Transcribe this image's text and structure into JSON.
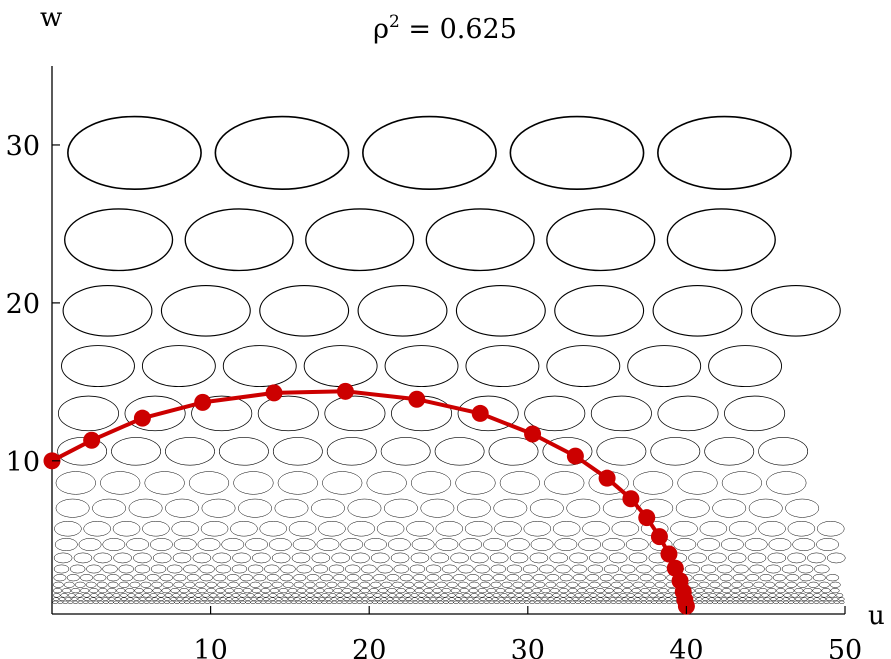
{
  "chart_data": {
    "type": "scatter",
    "title_base": "ρ",
    "title_sup": "2",
    "title_rest": " = 0.625",
    "xlabel": "u",
    "ylabel": "w",
    "xlim": [
      0,
      50
    ],
    "ylim": [
      0.3,
      35
    ],
    "x_ticks": [
      10,
      20,
      30,
      40,
      50
    ],
    "y_ticks": [
      10,
      20,
      30
    ],
    "grid": false,
    "colors": {
      "curve": "#cc0000",
      "ellipse_stroke": "#000000"
    },
    "ellipse_rows": [
      {
        "w": 29.5,
        "rx": 4.2,
        "ry": 2.3,
        "x_start": 5.2,
        "dx": 9.3
      },
      {
        "w": 24.0,
        "rx": 3.4,
        "ry": 1.95,
        "x_start": 4.2,
        "dx": 7.6
      },
      {
        "w": 19.5,
        "rx": 2.8,
        "ry": 1.6,
        "x_start": 3.5,
        "dx": 6.2
      },
      {
        "w": 16.0,
        "rx": 2.3,
        "ry": 1.3,
        "x_start": 2.9,
        "dx": 5.1
      },
      {
        "w": 13.0,
        "rx": 1.9,
        "ry": 1.1,
        "x_start": 2.3,
        "dx": 4.2
      },
      {
        "w": 10.6,
        "rx": 1.55,
        "ry": 0.88,
        "x_start": 1.9,
        "dx": 3.4
      },
      {
        "w": 8.6,
        "rx": 1.25,
        "ry": 0.72,
        "x_start": 1.5,
        "dx": 2.8
      },
      {
        "w": 7.0,
        "rx": 1.05,
        "ry": 0.58,
        "x_start": 1.3,
        "dx": 2.3
      },
      {
        "w": 5.7,
        "rx": 0.85,
        "ry": 0.47,
        "x_start": 1.0,
        "dx": 1.85
      },
      {
        "w": 4.7,
        "rx": 0.7,
        "ry": 0.39,
        "x_start": 0.9,
        "dx": 1.5
      },
      {
        "w": 3.85,
        "rx": 0.57,
        "ry": 0.32,
        "x_start": 0.7,
        "dx": 1.25
      },
      {
        "w": 3.15,
        "rx": 0.47,
        "ry": 0.26,
        "x_start": 0.6,
        "dx": 1.02
      },
      {
        "w": 2.6,
        "rx": 0.39,
        "ry": 0.21,
        "x_start": 0.5,
        "dx": 0.84
      },
      {
        "w": 2.15,
        "rx": 0.32,
        "ry": 0.175,
        "x_start": 0.4,
        "dx": 0.69
      },
      {
        "w": 1.78,
        "rx": 0.27,
        "ry": 0.145,
        "x_start": 0.35,
        "dx": 0.57
      },
      {
        "w": 1.48,
        "rx": 0.22,
        "ry": 0.12,
        "x_start": 0.3,
        "dx": 0.47
      },
      {
        "w": 1.24,
        "rx": 0.18,
        "ry": 0.1,
        "x_start": 0.25,
        "dx": 0.39
      },
      {
        "w": 1.04,
        "rx": 0.15,
        "ry": 0.085,
        "x_start": 0.2,
        "dx": 0.32
      }
    ],
    "series": [
      {
        "points": [
          [
            0.0,
            10.0
          ],
          [
            2.5,
            11.3
          ],
          [
            5.7,
            12.7
          ],
          [
            9.5,
            13.7
          ],
          [
            14.0,
            14.3
          ],
          [
            18.5,
            14.4
          ],
          [
            23.0,
            13.9
          ],
          [
            27.0,
            13.0
          ],
          [
            30.3,
            11.7
          ],
          [
            33.0,
            10.3
          ],
          [
            35.0,
            8.9
          ],
          [
            36.5,
            7.6
          ],
          [
            37.5,
            6.4
          ],
          [
            38.3,
            5.2
          ],
          [
            38.9,
            4.1
          ],
          [
            39.3,
            3.2
          ],
          [
            39.6,
            2.4
          ],
          [
            39.8,
            1.7
          ],
          [
            39.9,
            1.2
          ],
          [
            40.0,
            0.8
          ]
        ]
      }
    ]
  }
}
